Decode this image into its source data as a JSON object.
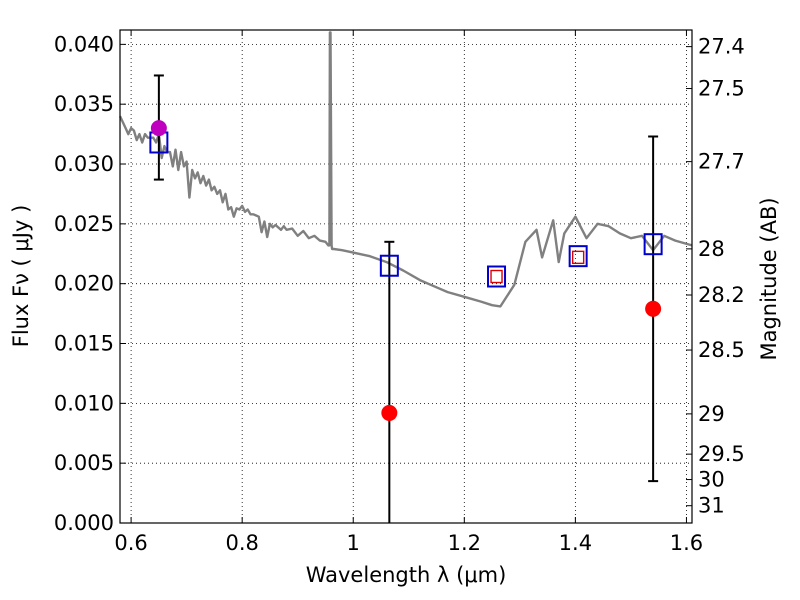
{
  "chart_data": {
    "type": "scatter",
    "xlabel": "Wavelength  λ (μm)",
    "ylabel": "Flux  Fν  ( μJy )",
    "ylabel_right": "Magnitude (AB)",
    "xlim": [
      0.58,
      1.61
    ],
    "ylim": [
      0.0,
      0.0412
    ],
    "grid": true,
    "x_ticks": [
      {
        "value": 0.6,
        "label": "0.6"
      },
      {
        "value": 0.8,
        "label": "0.8"
      },
      {
        "value": 1.0,
        "label": "1"
      },
      {
        "value": 1.2,
        "label": "1.2"
      },
      {
        "value": 1.4,
        "label": "1.4"
      },
      {
        "value": 1.6,
        "label": "1.6"
      }
    ],
    "y_ticks": [
      {
        "value": 0.0,
        "label": "0.000"
      },
      {
        "value": 0.005,
        "label": "0.005"
      },
      {
        "value": 0.01,
        "label": "0.010"
      },
      {
        "value": 0.015,
        "label": "0.015"
      },
      {
        "value": 0.02,
        "label": "0.020"
      },
      {
        "value": 0.025,
        "label": "0.025"
      },
      {
        "value": 0.03,
        "label": "0.030"
      },
      {
        "value": 0.035,
        "label": "0.035"
      },
      {
        "value": 0.04,
        "label": "0.040"
      }
    ],
    "right_ticks": [
      "27.4",
      "27.5",
      "27.7",
      "28",
      "28.2",
      "28.5",
      "29",
      "29.5",
      "30",
      "31"
    ],
    "sed_model": {
      "color": "#808080",
      "x": [
        0.58,
        0.585,
        0.59,
        0.595,
        0.6,
        0.605,
        0.61,
        0.615,
        0.62,
        0.625,
        0.63,
        0.64,
        0.645,
        0.65,
        0.655,
        0.66,
        0.665,
        0.67,
        0.675,
        0.68,
        0.685,
        0.69,
        0.695,
        0.7,
        0.705,
        0.71,
        0.715,
        0.72,
        0.725,
        0.73,
        0.735,
        0.74,
        0.745,
        0.75,
        0.755,
        0.76,
        0.765,
        0.77,
        0.775,
        0.78,
        0.785,
        0.79,
        0.795,
        0.8,
        0.805,
        0.81,
        0.815,
        0.82,
        0.825,
        0.83,
        0.835,
        0.84,
        0.845,
        0.85,
        0.855,
        0.86,
        0.87,
        0.875,
        0.88,
        0.89,
        0.9,
        0.91,
        0.92,
        0.93,
        0.94,
        0.95,
        0.955,
        0.957,
        0.958,
        0.959,
        0.961,
        0.962,
        0.965,
        0.98,
        1.0,
        1.03,
        1.06,
        1.09,
        1.12,
        1.15,
        1.17,
        1.2,
        1.23,
        1.25,
        1.265,
        1.29,
        1.31,
        1.33,
        1.34,
        1.36,
        1.37,
        1.38,
        1.4,
        1.42,
        1.44,
        1.46,
        1.48,
        1.5,
        1.52,
        1.54,
        1.56,
        1.58,
        1.61
      ],
      "y": [
        0.034,
        0.0335,
        0.033,
        0.0325,
        0.033,
        0.0328,
        0.032,
        0.0325,
        0.0318,
        0.0325,
        0.0322,
        0.0322,
        0.0318,
        0.0325,
        0.0305,
        0.0315,
        0.031,
        0.031,
        0.0298,
        0.0312,
        0.0295,
        0.031,
        0.0298,
        0.0302,
        0.0272,
        0.0295,
        0.0288,
        0.0293,
        0.0284,
        0.029,
        0.0282,
        0.0287,
        0.0278,
        0.0281,
        0.0275,
        0.0278,
        0.0268,
        0.0275,
        0.0262,
        0.0264,
        0.0256,
        0.0263,
        0.0262,
        0.0265,
        0.026,
        0.0262,
        0.0258,
        0.0258,
        0.0257,
        0.0256,
        0.0243,
        0.0252,
        0.0239,
        0.025,
        0.0247,
        0.0249,
        0.0245,
        0.0248,
        0.0245,
        0.0246,
        0.024,
        0.0244,
        0.0238,
        0.024,
        0.0236,
        0.0235,
        0.0232,
        0.0232,
        0.041,
        0.041,
        0.0232,
        0.0229,
        0.0229,
        0.0228,
        0.0226,
        0.0223,
        0.0218,
        0.0211,
        0.0203,
        0.0197,
        0.0193,
        0.0189,
        0.0185,
        0.0182,
        0.0181,
        0.0199,
        0.0235,
        0.0245,
        0.0222,
        0.0253,
        0.0218,
        0.0242,
        0.0256,
        0.0238,
        0.025,
        0.0248,
        0.0242,
        0.0238,
        0.024,
        0.0228,
        0.024,
        0.0236,
        0.0232
      ]
    },
    "series": [
      {
        "marker": "open-square",
        "color": "#0000cc",
        "x": [
          0.65,
          1.065,
          1.258,
          1.405,
          1.54
        ],
        "y": [
          0.0318,
          0.0215,
          0.0206,
          0.0223,
          0.0233
        ]
      },
      {
        "marker": "small-open-square",
        "color": "#dd0000",
        "x": [
          1.258,
          1.405
        ],
        "y": [
          0.0206,
          0.0222
        ]
      },
      {
        "marker": "filled-circle",
        "color": "#ff0000",
        "x": [
          1.065,
          1.54
        ],
        "y": [
          0.0092,
          0.0179
        ]
      },
      {
        "marker": "filled-circle",
        "color": "#bf00bf",
        "x": [
          0.65
        ],
        "y": [
          0.033
        ]
      }
    ],
    "error_bars": {
      "color": "#000000",
      "bars": [
        {
          "x": 0.65,
          "low": 0.0287,
          "high": 0.0374
        },
        {
          "x": 1.065,
          "low": 0.0,
          "high": 0.0235
        },
        {
          "x": 1.54,
          "low": 0.0035,
          "high": 0.0323
        }
      ]
    }
  }
}
